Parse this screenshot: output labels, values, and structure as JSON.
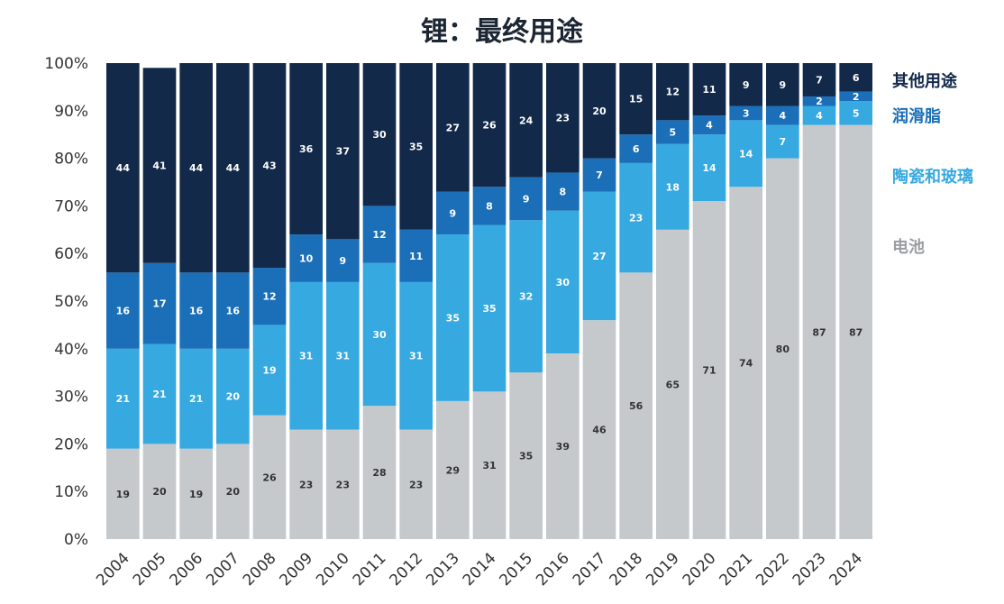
{
  "chart_data": {
    "type": "bar",
    "stacked": true,
    "title": "锂：最终用途",
    "categories": [
      "2004",
      "2005",
      "2006",
      "2007",
      "2008",
      "2009",
      "2010",
      "2011",
      "2012",
      "2013",
      "2014",
      "2015",
      "2016",
      "2017",
      "2018",
      "2019",
      "2020",
      "2021",
      "2022",
      "2023",
      "2024"
    ],
    "series": [
      {
        "name": "电池",
        "color": "#c5c9cc",
        "label_color": "#333333",
        "values": [
          19,
          20,
          19,
          20,
          26,
          23,
          23,
          28,
          23,
          29,
          31,
          35,
          39,
          46,
          56,
          65,
          71,
          74,
          80,
          87,
          87
        ]
      },
      {
        "name": "陶瓷和玻璃",
        "color": "#36a9e1",
        "label_color": "#ffffff",
        "values": [
          21,
          21,
          21,
          20,
          19,
          31,
          31,
          30,
          31,
          35,
          35,
          32,
          30,
          27,
          23,
          18,
          14,
          14,
          7,
          4,
          5
        ]
      },
      {
        "name": "润滑脂",
        "color": "#1a6fb8",
        "label_color": "#ffffff",
        "values": [
          16,
          17,
          16,
          16,
          12,
          10,
          9,
          12,
          11,
          9,
          8,
          9,
          8,
          7,
          6,
          5,
          4,
          3,
          4,
          2,
          2
        ]
      },
      {
        "name": "其他用途",
        "color": "#13294a",
        "label_color": "#ffffff",
        "values": [
          44,
          41,
          44,
          44,
          43,
          36,
          37,
          30,
          35,
          27,
          26,
          24,
          23,
          20,
          15,
          12,
          11,
          9,
          9,
          7,
          6
        ]
      }
    ],
    "y_ticks": [
      "0%",
      "10%",
      "20%",
      "30%",
      "40%",
      "50%",
      "60%",
      "70%",
      "80%",
      "90%",
      "100%"
    ],
    "ylim": [
      0,
      100
    ],
    "legend_position": "right",
    "legend_colors": {
      "其他用途": "#13294a",
      "润滑脂": "#1a6fb8",
      "陶瓷和玻璃": "#36a9e1",
      "电池": "#9a9ea2"
    }
  }
}
